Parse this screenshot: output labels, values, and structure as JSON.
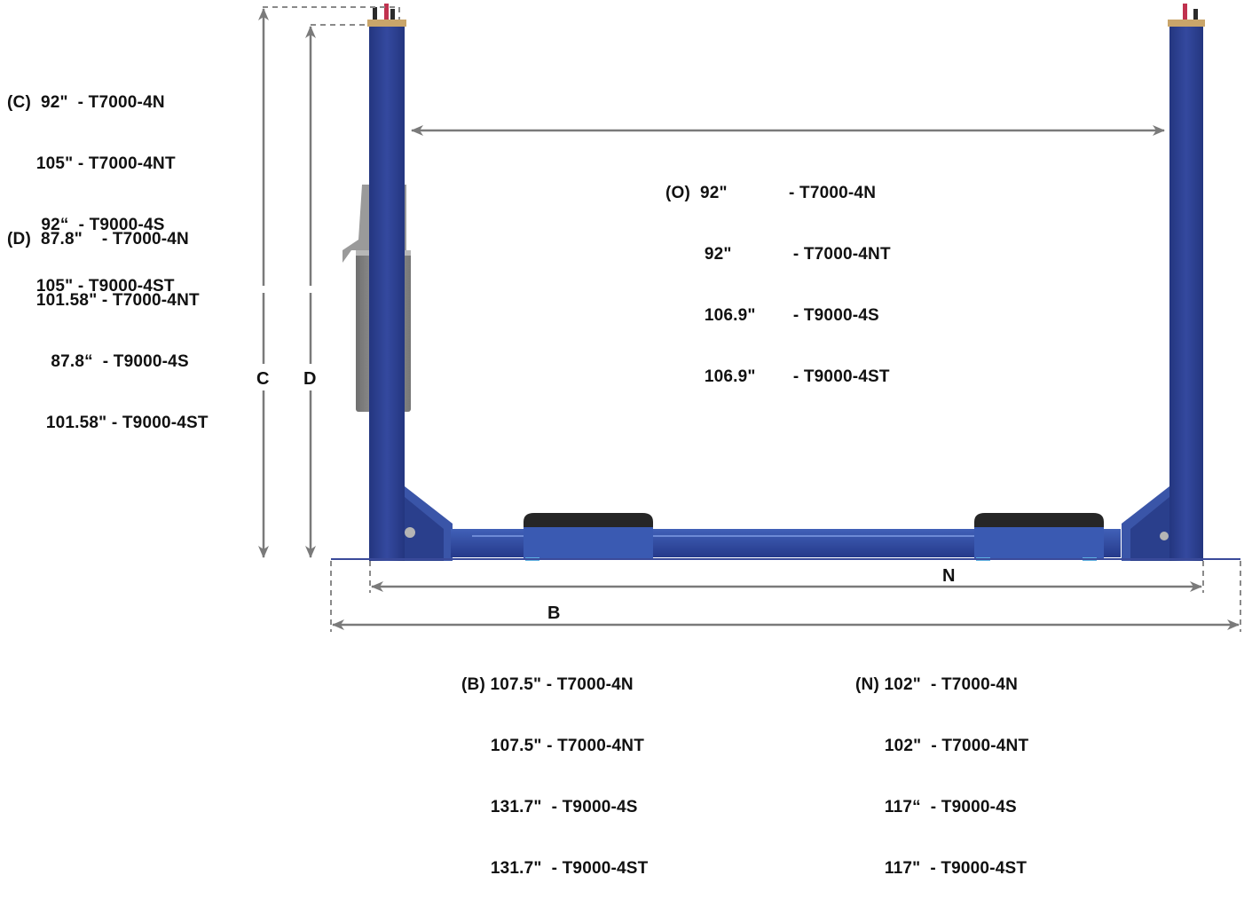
{
  "colors": {
    "column": "#2f449e",
    "column_shade": "#24367f",
    "arm": "#3352a8",
    "pad": "#262626",
    "carriage": "#8a8a8a",
    "dimension_line": "#7a7a7a"
  },
  "dimension_letters": {
    "c": "C",
    "d": "D",
    "b": "B",
    "n": "N"
  },
  "specs": {
    "c": {
      "tag": "(C)",
      "rows": [
        {
          "value": "92\"",
          "model": "- T7000-4N"
        },
        {
          "value": "105\"",
          "model": "- T7000-4NT"
        },
        {
          "value": "92“",
          "model": "- T9000-4S"
        },
        {
          "value": "105\"",
          "model": "- T9000-4ST"
        }
      ]
    },
    "d": {
      "tag": "(D)",
      "rows": [
        {
          "value": "87.8\"",
          "model": "- T7000-4N"
        },
        {
          "value": "101.58\"",
          "model": "- T7000-4NT"
        },
        {
          "value": "87.8“",
          "model": "- T9000-4S"
        },
        {
          "value": "101.58\"",
          "model": "- T9000-4ST"
        }
      ]
    },
    "o": {
      "tag": "(O)",
      "rows": [
        {
          "value": "92\"",
          "model": "- T7000-4N"
        },
        {
          "value": "92\"",
          "model": "- T7000-4NT"
        },
        {
          "value": "106.9\"",
          "model": "- T9000-4S"
        },
        {
          "value": "106.9\"",
          "model": "- T9000-4ST"
        }
      ]
    },
    "b": {
      "tag": "(B)",
      "rows": [
        {
          "value": "107.5\"",
          "model": "- T7000-4N"
        },
        {
          "value": "107.5\"",
          "model": "- T7000-4NT"
        },
        {
          "value": "131.7\"",
          "model": "- T9000-4S"
        },
        {
          "value": "131.7\"",
          "model": "- T9000-4ST"
        }
      ]
    },
    "n": {
      "tag": "(N)",
      "rows": [
        {
          "value": "102\"",
          "model": "- T7000-4N"
        },
        {
          "value": "102\"",
          "model": "- T7000-4NT"
        },
        {
          "value": "117“",
          "model": "- T9000-4S"
        },
        {
          "value": "117\"",
          "model": "- T9000-4ST"
        }
      ]
    }
  }
}
